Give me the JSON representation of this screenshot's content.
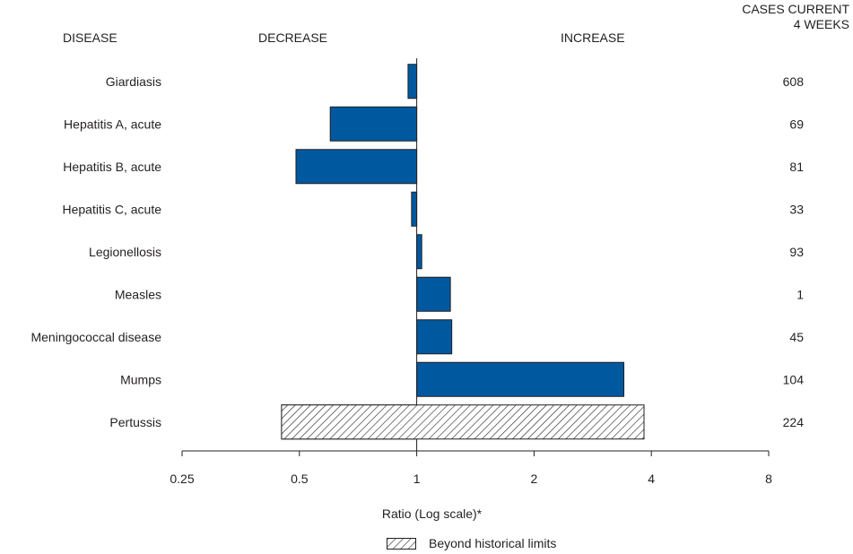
{
  "headers": {
    "disease": "DISEASE",
    "decrease": "DECREASE",
    "increase": "INCREASE",
    "cases_line1": "CASES CURRENT",
    "cases_line2": "4 WEEKS"
  },
  "colors": {
    "bar": "#00589f",
    "outline": "#231f20",
    "hatch": "#231f20"
  },
  "legend": {
    "beyond_label": "Beyond historical limits",
    "pattern": "diagonal-hatch"
  },
  "chart_data": {
    "type": "bar",
    "orientation": "horizontal",
    "x_scale": "log2",
    "xlabel": "Ratio (Log scale)*",
    "xlim": [
      0.25,
      8
    ],
    "x_ticks": [
      0.25,
      0.5,
      1,
      2,
      4,
      8
    ],
    "x_tick_labels": [
      "0.25",
      "0.5",
      "1",
      "2",
      "4",
      "8"
    ],
    "baseline": 1,
    "categories": [
      "Giardiasis",
      "Hepatitis A, acute",
      "Hepatitis B, acute",
      "Hepatitis C, acute",
      "Legionellosis",
      "Measles",
      "Meningococcal disease",
      "Mumps",
      "Pertussis"
    ],
    "values": [
      0.95,
      0.6,
      0.49,
      0.97,
      1.03,
      1.22,
      1.23,
      3.4,
      0.45
    ],
    "beyond_historical_limits_to": [
      null,
      null,
      null,
      null,
      null,
      null,
      null,
      null,
      3.83
    ],
    "cases_current_4_weeks": [
      "608",
      "69",
      "81",
      "33",
      "93",
      "1",
      "45",
      "104",
      "224"
    ]
  }
}
